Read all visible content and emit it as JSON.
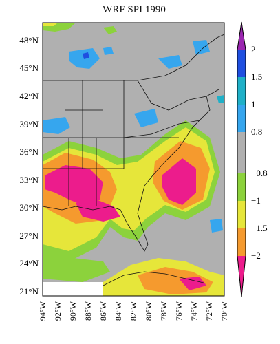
{
  "title": "WRF SPI 1990",
  "lat_ticks": [
    "48°N",
    "45°N",
    "42°N",
    "39°N",
    "36°N",
    "33°N",
    "30°N",
    "27°N",
    "24°N",
    "21°N"
  ],
  "lon_ticks": [
    "94°W",
    "92°W",
    "90°W",
    "88°W",
    "86°W",
    "84°W",
    "82°W",
    "80°W",
    "78°W",
    "76°W",
    "74°W",
    "72°W",
    "70°W"
  ],
  "colorbar": {
    "bins": [
      {
        "color": "#9b27b0"
      },
      {
        "color": "#1f4fe0"
      },
      {
        "color": "#1fb0c8"
      },
      {
        "color": "#36a6ee"
      },
      {
        "color": "#b0b0b0"
      },
      {
        "color": "#8cd23c"
      },
      {
        "color": "#e6e63a"
      },
      {
        "color": "#f59a2e"
      },
      {
        "color": "#ec1c8c"
      }
    ],
    "labels": [
      "2",
      "1.5",
      "1",
      "0.8",
      "−0.8",
      "−1",
      "−1.5",
      "−2"
    ]
  },
  "colors": {
    "background": "#b0b0b0",
    "dry_extreme": "#ec1c8c",
    "severe_dry": "#f59a2e",
    "moderate_dry": "#e6e63a",
    "mild_dry": "#8cd23c",
    "mild_wet": "#36a6ee",
    "wet": "#1fb0c8"
  }
}
